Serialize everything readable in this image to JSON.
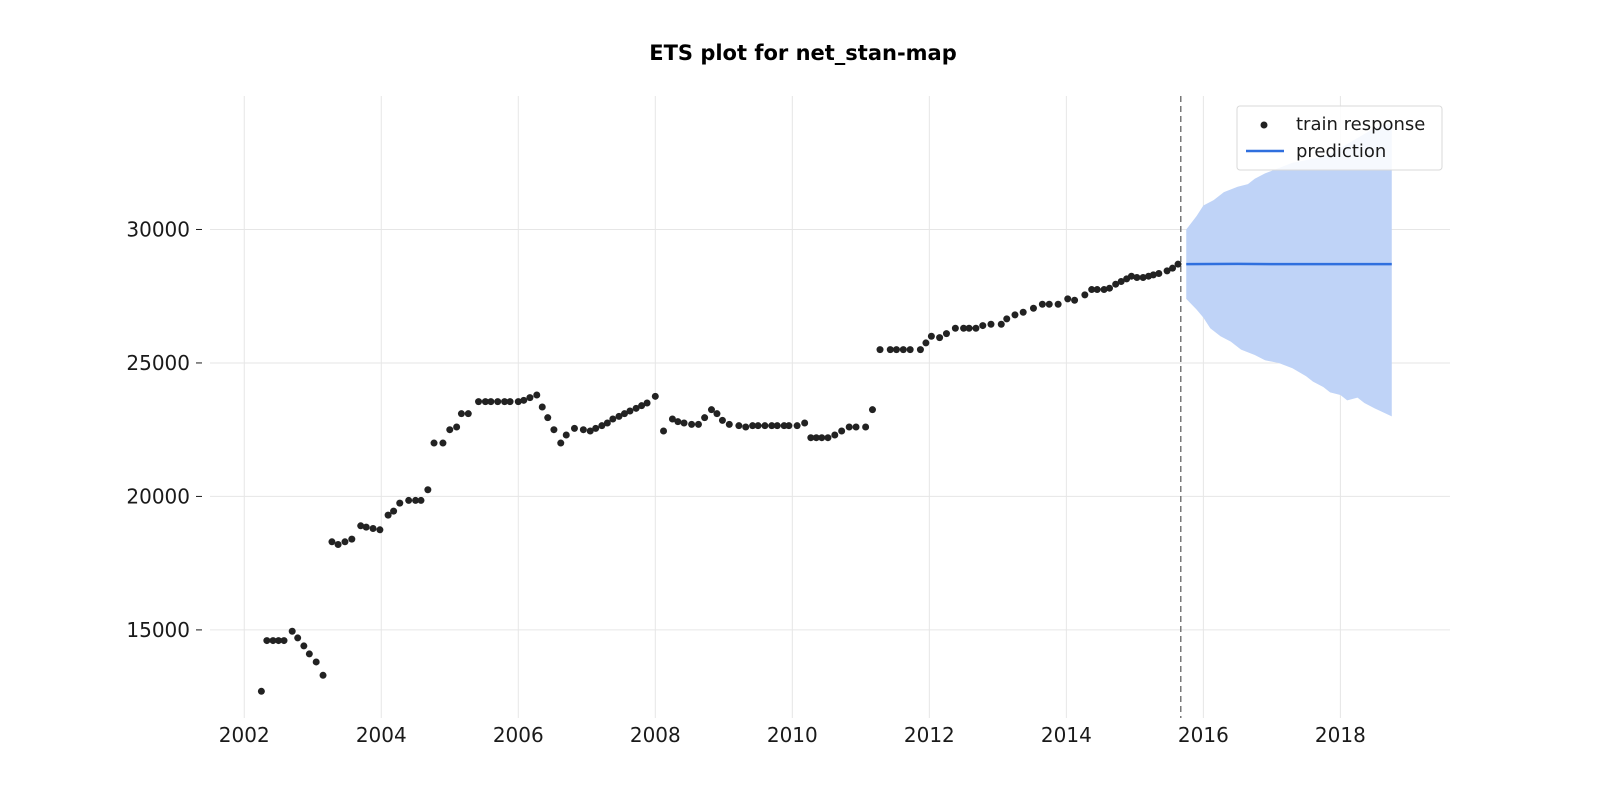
{
  "chart_data": {
    "type": "scatter",
    "title": "ETS plot for net_stan-map",
    "xlabel": "",
    "ylabel": "",
    "xlim": [
      2001.5,
      2019.6
    ],
    "ylim": [
      11700,
      35000
    ],
    "x_ticks": [
      "2002",
      "2004",
      "2006",
      "2008",
      "2010",
      "2012",
      "2014",
      "2016",
      "2018"
    ],
    "y_ticks": [
      "15000",
      "20000",
      "25000",
      "30000"
    ],
    "grid": true,
    "legend_position": "upper-right",
    "legend": [
      "train response",
      "prediction"
    ],
    "split_date": 2015.67,
    "colors": {
      "train": "#222222",
      "prediction": "#2f6fde",
      "band": "#bfd3f7",
      "grid": "#e6e6e6",
      "split_line": "#777777"
    },
    "series": [
      {
        "name": "train response",
        "type": "scatter",
        "points": [
          [
            2002.25,
            12700
          ],
          [
            2002.33,
            14600
          ],
          [
            2002.42,
            14600
          ],
          [
            2002.5,
            14600
          ],
          [
            2002.58,
            14600
          ],
          [
            2002.7,
            14950
          ],
          [
            2002.78,
            14700
          ],
          [
            2002.87,
            14400
          ],
          [
            2002.95,
            14100
          ],
          [
            2003.05,
            13800
          ],
          [
            2003.15,
            13300
          ],
          [
            2003.28,
            18300
          ],
          [
            2003.37,
            18200
          ],
          [
            2003.47,
            18300
          ],
          [
            2003.57,
            18400
          ],
          [
            2003.7,
            18900
          ],
          [
            2003.78,
            18850
          ],
          [
            2003.88,
            18800
          ],
          [
            2003.98,
            18750
          ],
          [
            2004.1,
            19300
          ],
          [
            2004.18,
            19450
          ],
          [
            2004.27,
            19750
          ],
          [
            2004.4,
            19850
          ],
          [
            2004.5,
            19850
          ],
          [
            2004.58,
            19850
          ],
          [
            2004.68,
            20250
          ],
          [
            2004.77,
            22000
          ],
          [
            2004.9,
            22000
          ],
          [
            2005.0,
            22500
          ],
          [
            2005.1,
            22600
          ],
          [
            2005.17,
            23100
          ],
          [
            2005.27,
            23100
          ],
          [
            2005.42,
            23550
          ],
          [
            2005.52,
            23550
          ],
          [
            2005.6,
            23550
          ],
          [
            2005.7,
            23550
          ],
          [
            2005.8,
            23550
          ],
          [
            2005.88,
            23550
          ],
          [
            2006.0,
            23550
          ],
          [
            2006.08,
            23600
          ],
          [
            2006.17,
            23700
          ],
          [
            2006.27,
            23800
          ],
          [
            2006.35,
            23350
          ],
          [
            2006.43,
            22950
          ],
          [
            2006.52,
            22500
          ],
          [
            2006.62,
            22000
          ],
          [
            2006.7,
            22300
          ],
          [
            2006.82,
            22550
          ],
          [
            2006.95,
            22500
          ],
          [
            2007.05,
            22450
          ],
          [
            2007.13,
            22550
          ],
          [
            2007.22,
            22650
          ],
          [
            2007.3,
            22750
          ],
          [
            2007.38,
            22900
          ],
          [
            2007.47,
            23000
          ],
          [
            2007.55,
            23100
          ],
          [
            2007.63,
            23200
          ],
          [
            2007.72,
            23300
          ],
          [
            2007.8,
            23400
          ],
          [
            2007.88,
            23500
          ],
          [
            2008.0,
            23750
          ],
          [
            2008.12,
            22450
          ],
          [
            2008.25,
            22900
          ],
          [
            2008.33,
            22800
          ],
          [
            2008.42,
            22750
          ],
          [
            2008.53,
            22700
          ],
          [
            2008.63,
            22700
          ],
          [
            2008.72,
            22950
          ],
          [
            2008.82,
            23250
          ],
          [
            2008.9,
            23100
          ],
          [
            2008.98,
            22850
          ],
          [
            2009.08,
            22700
          ],
          [
            2009.22,
            22650
          ],
          [
            2009.32,
            22600
          ],
          [
            2009.42,
            22650
          ],
          [
            2009.5,
            22650
          ],
          [
            2009.6,
            22650
          ],
          [
            2009.7,
            22650
          ],
          [
            2009.78,
            22650
          ],
          [
            2009.88,
            22650
          ],
          [
            2009.95,
            22650
          ],
          [
            2010.07,
            22650
          ],
          [
            2010.18,
            22750
          ],
          [
            2010.27,
            22200
          ],
          [
            2010.35,
            22200
          ],
          [
            2010.43,
            22200
          ],
          [
            2010.52,
            22200
          ],
          [
            2010.62,
            22300
          ],
          [
            2010.72,
            22450
          ],
          [
            2010.83,
            22600
          ],
          [
            2010.93,
            22600
          ],
          [
            2011.07,
            22600
          ],
          [
            2011.17,
            23250
          ],
          [
            2011.28,
            25500
          ],
          [
            2011.43,
            25500
          ],
          [
            2011.52,
            25500
          ],
          [
            2011.62,
            25500
          ],
          [
            2011.72,
            25500
          ],
          [
            2011.87,
            25500
          ],
          [
            2011.95,
            25750
          ],
          [
            2012.03,
            26000
          ],
          [
            2012.15,
            25950
          ],
          [
            2012.25,
            26100
          ],
          [
            2012.38,
            26300
          ],
          [
            2012.5,
            26300
          ],
          [
            2012.58,
            26300
          ],
          [
            2012.68,
            26300
          ],
          [
            2012.78,
            26400
          ],
          [
            2012.9,
            26450
          ],
          [
            2013.05,
            26450
          ],
          [
            2013.13,
            26650
          ],
          [
            2013.25,
            26800
          ],
          [
            2013.37,
            26900
          ],
          [
            2013.52,
            27050
          ],
          [
            2013.65,
            27200
          ],
          [
            2013.75,
            27200
          ],
          [
            2013.88,
            27200
          ],
          [
            2014.02,
            27400
          ],
          [
            2014.12,
            27350
          ],
          [
            2014.27,
            27550
          ],
          [
            2014.37,
            27750
          ],
          [
            2014.45,
            27750
          ],
          [
            2014.55,
            27750
          ],
          [
            2014.63,
            27800
          ],
          [
            2014.72,
            27950
          ],
          [
            2014.8,
            28050
          ],
          [
            2014.88,
            28150
          ],
          [
            2014.95,
            28250
          ],
          [
            2015.03,
            28200
          ],
          [
            2015.12,
            28200
          ],
          [
            2015.2,
            28250
          ],
          [
            2015.27,
            28300
          ],
          [
            2015.35,
            28350
          ],
          [
            2015.47,
            28450
          ],
          [
            2015.55,
            28550
          ],
          [
            2015.63,
            28700
          ]
        ]
      },
      {
        "name": "prediction",
        "type": "line",
        "points": [
          [
            2015.75,
            28700
          ],
          [
            2016.5,
            28710
          ],
          [
            2017.0,
            28700
          ],
          [
            2017.5,
            28700
          ],
          [
            2018.0,
            28700
          ],
          [
            2018.5,
            28700
          ],
          [
            2018.75,
            28700
          ]
        ]
      }
    ],
    "band": {
      "upper": [
        [
          2015.75,
          30000
        ],
        [
          2015.9,
          30500
        ],
        [
          2016.0,
          30900
        ],
        [
          2016.15,
          31100
        ],
        [
          2016.3,
          31400
        ],
        [
          2016.5,
          31600
        ],
        [
          2016.65,
          31700
        ],
        [
          2016.75,
          31900
        ],
        [
          2016.9,
          32100
        ],
        [
          2017.1,
          32300
        ],
        [
          2017.3,
          32500
        ],
        [
          2017.5,
          32600
        ],
        [
          2017.7,
          32700
        ],
        [
          2017.9,
          32900
        ],
        [
          2018.1,
          33200
        ],
        [
          2018.3,
          33500
        ],
        [
          2018.5,
          33800
        ],
        [
          2018.75,
          34000
        ]
      ],
      "lower": [
        [
          2015.75,
          27400
        ],
        [
          2015.9,
          27000
        ],
        [
          2016.0,
          26700
        ],
        [
          2016.1,
          26300
        ],
        [
          2016.25,
          26000
        ],
        [
          2016.4,
          25800
        ],
        [
          2016.55,
          25500
        ],
        [
          2016.75,
          25300
        ],
        [
          2016.9,
          25100
        ],
        [
          2017.1,
          25000
        ],
        [
          2017.3,
          24800
        ],
        [
          2017.5,
          24500
        ],
        [
          2017.6,
          24300
        ],
        [
          2017.75,
          24100
        ],
        [
          2017.85,
          23900
        ],
        [
          2018.0,
          23800
        ],
        [
          2018.1,
          23600
        ],
        [
          2018.25,
          23700
        ],
        [
          2018.35,
          23500
        ],
        [
          2018.5,
          23300
        ],
        [
          2018.75,
          23000
        ]
      ]
    }
  }
}
